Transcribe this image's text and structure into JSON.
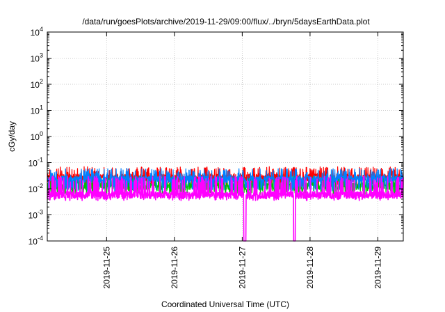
{
  "chart_data": {
    "type": "line",
    "title": "/data/run/goesPlots/archive/2019-11-29/09:00/flux/../bryn/5daysEarthData.plot",
    "xlabel": "Coordinated Universal Time (UTC)",
    "ylabel": "cGy/day",
    "yscale": "log",
    "ylim": [
      0.0001,
      10000
    ],
    "xlim": [
      "2019-11-24T03:00",
      "2019-11-29T09:00"
    ],
    "grid": true,
    "x_ticks": [
      "2019-11-25",
      "2019-11-26",
      "2019-11-27",
      "2019-11-28",
      "2019-11-29"
    ],
    "y_ticks": [
      {
        "value": 0.0001,
        "base": "10",
        "exp": "-4"
      },
      {
        "value": 0.001,
        "base": "10",
        "exp": "-3"
      },
      {
        "value": 0.01,
        "base": "10",
        "exp": "-2"
      },
      {
        "value": 0.1,
        "base": "10",
        "exp": "-1"
      },
      {
        "value": 1,
        "base": "10",
        "exp": "0"
      },
      {
        "value": 10,
        "base": "10",
        "exp": "1"
      },
      {
        "value": 100,
        "base": "10",
        "exp": "2"
      },
      {
        "value": 1000,
        "base": "10",
        "exp": "3"
      },
      {
        "value": 10000,
        "base": "10",
        "exp": "4"
      }
    ],
    "series": [
      {
        "color": "#ff0000",
        "baseline": 0.028,
        "upper": 0.07,
        "lower": 0.012,
        "dips": []
      },
      {
        "color": "#00c000",
        "baseline": 0.013,
        "upper": 0.03,
        "lower": 0.006,
        "dips": []
      },
      {
        "color": "#0080ff",
        "baseline": 0.024,
        "upper": 0.06,
        "lower": 0.008,
        "dips": []
      },
      {
        "color": "#ff00ff",
        "baseline": 0.006,
        "upper": 0.03,
        "lower": 0.0035,
        "dips": [
          [
            "2019-11-27T00:30",
            "2019-11-27T01:20"
          ],
          [
            "2019-11-27T18:10",
            "2019-11-27T18:50"
          ]
        ]
      }
    ]
  }
}
